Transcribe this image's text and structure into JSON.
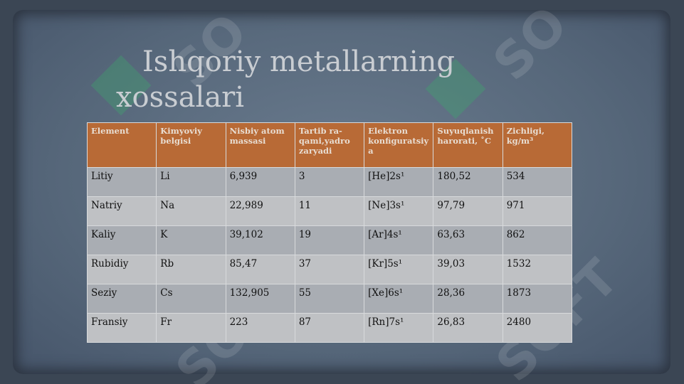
{
  "slide": {
    "title": "Ishqoriy metallarning xossalari",
    "table": {
      "header": [
        "Element",
        "Kimyoviy belgisi",
        "Nisbiy atom massasi",
        "Tartib ra-qami,yadro zaryadi",
        "Elektron konfiguratsiya",
        "Suyuqlanish harorati, ˚C",
        "Zichligi, kg/m³"
      ],
      "rows": [
        [
          "Litiy",
          "Li",
          "6,939",
          "3",
          "[He]2s¹",
          "180,52",
          "534"
        ],
        [
          "Natriy",
          "Na",
          "22,989",
          "11",
          "[Ne]3s¹",
          "97,79",
          "971"
        ],
        [
          "Kaliy",
          "K",
          "39,102",
          "19",
          "[Ar]4s¹",
          "63,63",
          "862"
        ],
        [
          "Rubidiy",
          "Rb",
          "85,47",
          "37",
          "[Kr]5s¹",
          "39,03",
          "1532"
        ],
        [
          "Seziy",
          "Cs",
          "132,905",
          "55",
          "[Xe]6s¹",
          "28,36",
          "1873"
        ],
        [
          "Fransiy",
          "Fr",
          "223",
          "87",
          "[Rn]7s¹",
          "26,83",
          "2480"
        ]
      ]
    }
  }
}
